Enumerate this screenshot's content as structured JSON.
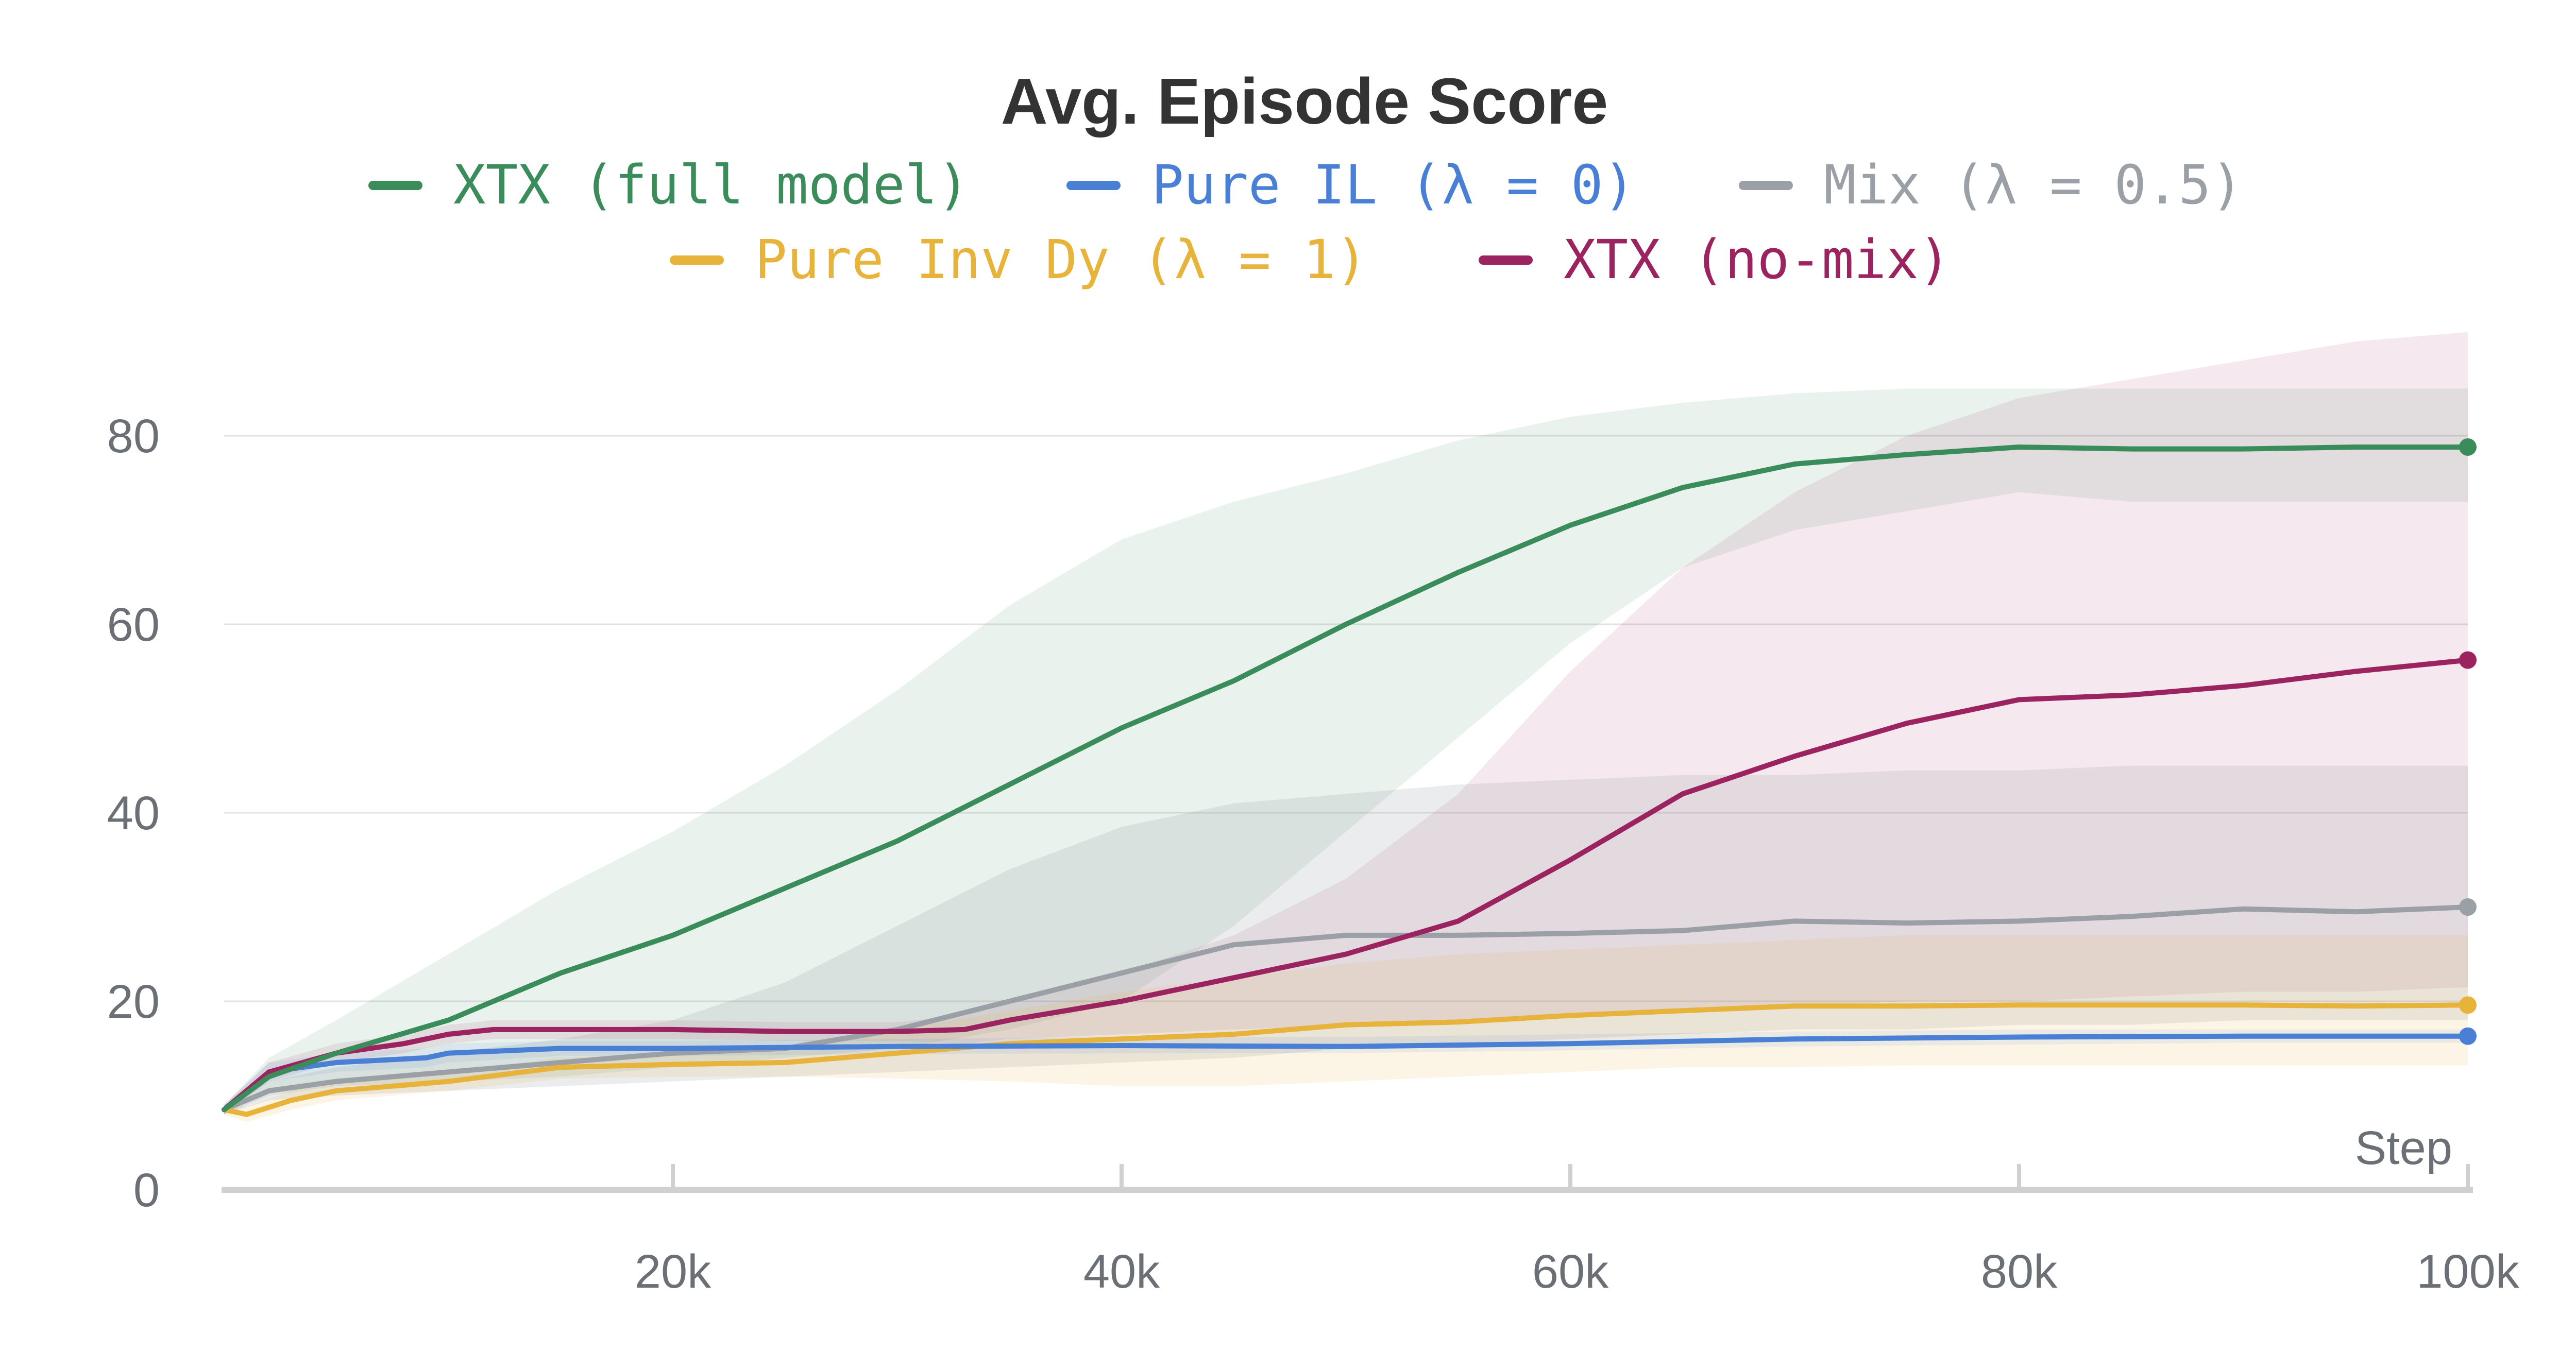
{
  "chart_data": {
    "type": "line",
    "title": "Avg. Episode Score",
    "xlabel": "Step",
    "ylabel": "",
    "xlim": [
      0,
      100000
    ],
    "ylim": [
      0,
      90
    ],
    "x_ticks": [
      20000,
      40000,
      60000,
      80000,
      100000
    ],
    "x_tick_labels": [
      "20k",
      "40k",
      "60k",
      "80k",
      "100k"
    ],
    "y_ticks": [
      0,
      20,
      40,
      60,
      80
    ],
    "y_tick_labels": [
      "0",
      "20",
      "40",
      "60",
      "80"
    ],
    "grid": true,
    "legend_position": "top",
    "series": [
      {
        "name": "XTX (full model)",
        "color": "#3a8c5a",
        "x": [
          0,
          2000,
          5000,
          10000,
          15000,
          20000,
          25000,
          30000,
          35000,
          40000,
          45000,
          50000,
          55000,
          60000,
          65000,
          70000,
          75000,
          80000,
          85000,
          90000,
          95000,
          100000
        ],
        "values": [
          8.5,
          12,
          14.5,
          18,
          23,
          27,
          32,
          37,
          43,
          49,
          54,
          60,
          65.5,
          70.5,
          74.5,
          77,
          78,
          78.8,
          78.6,
          78.6,
          78.8,
          78.8
        ],
        "band_upper": [
          9,
          14,
          18,
          25,
          32,
          38,
          45,
          53,
          62,
          69,
          73,
          76,
          79.5,
          82,
          83.5,
          84.5,
          85,
          85,
          85,
          85,
          85,
          85
        ],
        "band_lower": [
          8,
          10,
          11,
          11.5,
          12,
          13,
          14,
          15,
          17,
          20,
          28,
          38,
          48,
          58,
          66,
          70,
          72,
          74,
          73,
          73,
          73,
          73
        ]
      },
      {
        "name": "Pure IL (λ = 0)",
        "color": "#4a7fd6",
        "x": [
          0,
          2000,
          5000,
          9000,
          10000,
          15000,
          20000,
          30000,
          40000,
          50000,
          60000,
          70000,
          80000,
          90000,
          100000
        ],
        "values": [
          8.5,
          12.5,
          13.5,
          14,
          14.5,
          15,
          15,
          15.2,
          15.3,
          15.2,
          15.5,
          16,
          16.2,
          16.3,
          16.3
        ],
        "band_upper": [
          9,
          13.5,
          14.5,
          15,
          15.5,
          15.8,
          15.8,
          16,
          16.2,
          16.2,
          16.5,
          16.8,
          17,
          17,
          17
        ],
        "band_lower": [
          8,
          11.5,
          12.5,
          13,
          13.5,
          14.2,
          14.2,
          14.4,
          14.5,
          14.5,
          14.8,
          15.2,
          15.4,
          15.6,
          15.6
        ]
      },
      {
        "name": "Mix (λ = 0.5)",
        "color": "#9aa0a6",
        "x": [
          0,
          2000,
          5000,
          10000,
          15000,
          20000,
          25000,
          30000,
          35000,
          40000,
          45000,
          50000,
          55000,
          60000,
          65000,
          70000,
          75000,
          80000,
          85000,
          90000,
          95000,
          100000
        ],
        "values": [
          8.5,
          10.5,
          11.5,
          12.5,
          13.5,
          14.5,
          15,
          17,
          20,
          23,
          26,
          27,
          27,
          27.2,
          27.5,
          28.5,
          28.3,
          28.5,
          29,
          29.8,
          29.5,
          30
        ],
        "band_upper": [
          9,
          11.5,
          13,
          14.5,
          16,
          18,
          22,
          28,
          34,
          38.5,
          41,
          42,
          43,
          43.5,
          44,
          44,
          44.5,
          44.5,
          45,
          45,
          45,
          45
        ],
        "band_lower": [
          8,
          9.5,
          10,
          10.5,
          11,
          11.5,
          12,
          12.5,
          13,
          13.5,
          14,
          15,
          15.5,
          16,
          16.5,
          17,
          17,
          17.5,
          17.5,
          18,
          18,
          18
        ]
      },
      {
        "name": "Pure Inv Dy (λ = 1)",
        "color": "#e8b33a",
        "x": [
          0,
          1000,
          3000,
          5000,
          10000,
          15000,
          20000,
          25000,
          30000,
          35000,
          40000,
          45000,
          50000,
          55000,
          60000,
          65000,
          70000,
          75000,
          80000,
          85000,
          90000,
          95000,
          100000
        ],
        "values": [
          8.5,
          8,
          9.5,
          10.5,
          11.5,
          13,
          13.3,
          13.5,
          14.5,
          15.5,
          16,
          16.5,
          17.5,
          17.8,
          18.5,
          19,
          19.5,
          19.5,
          19.6,
          19.6,
          19.6,
          19.5,
          19.6
        ],
        "band_upper": [
          9,
          8.8,
          10.5,
          11.5,
          12.5,
          14,
          14.5,
          15,
          17,
          19,
          21,
          22.5,
          24,
          25,
          25.5,
          26,
          26.5,
          27,
          27,
          27,
          27,
          27,
          27
        ],
        "band_lower": [
          8,
          7.2,
          8.5,
          9.5,
          10.5,
          11.8,
          12,
          12,
          11.8,
          11.5,
          11,
          11,
          11.5,
          12,
          12.5,
          13,
          13,
          13.2,
          13.2,
          13.2,
          13.2,
          13.2,
          13.2
        ]
      },
      {
        "name": "XTX (no-mix)",
        "color": "#9b2360",
        "x": [
          0,
          2000,
          5000,
          8000,
          10000,
          12000,
          15000,
          20000,
          25000,
          30000,
          33000,
          35000,
          40000,
          45000,
          50000,
          55000,
          60000,
          65000,
          70000,
          75000,
          80000,
          85000,
          90000,
          95000,
          100000
        ],
        "values": [
          8.5,
          12.5,
          14.5,
          15.5,
          16.5,
          17,
          17,
          17,
          16.8,
          16.8,
          17,
          18,
          20,
          22.5,
          25,
          28.5,
          35,
          42,
          46,
          49.5,
          52,
          52.5,
          53.5,
          55,
          56.2
        ],
        "band_upper": [
          9,
          13.5,
          15.5,
          16.5,
          17.5,
          18,
          18,
          18,
          17.8,
          17.8,
          18.5,
          20,
          23,
          27,
          33,
          42,
          55,
          66,
          74,
          80,
          84,
          86,
          88,
          90,
          91
        ],
        "band_lower": [
          8,
          11.5,
          13.5,
          14.5,
          15.5,
          16,
          16,
          16,
          15.8,
          15.8,
          15.5,
          16,
          16.5,
          17,
          17.5,
          18,
          18.5,
          19,
          19.5,
          20,
          20,
          20.5,
          21,
          21,
          21.5
        ]
      }
    ]
  }
}
